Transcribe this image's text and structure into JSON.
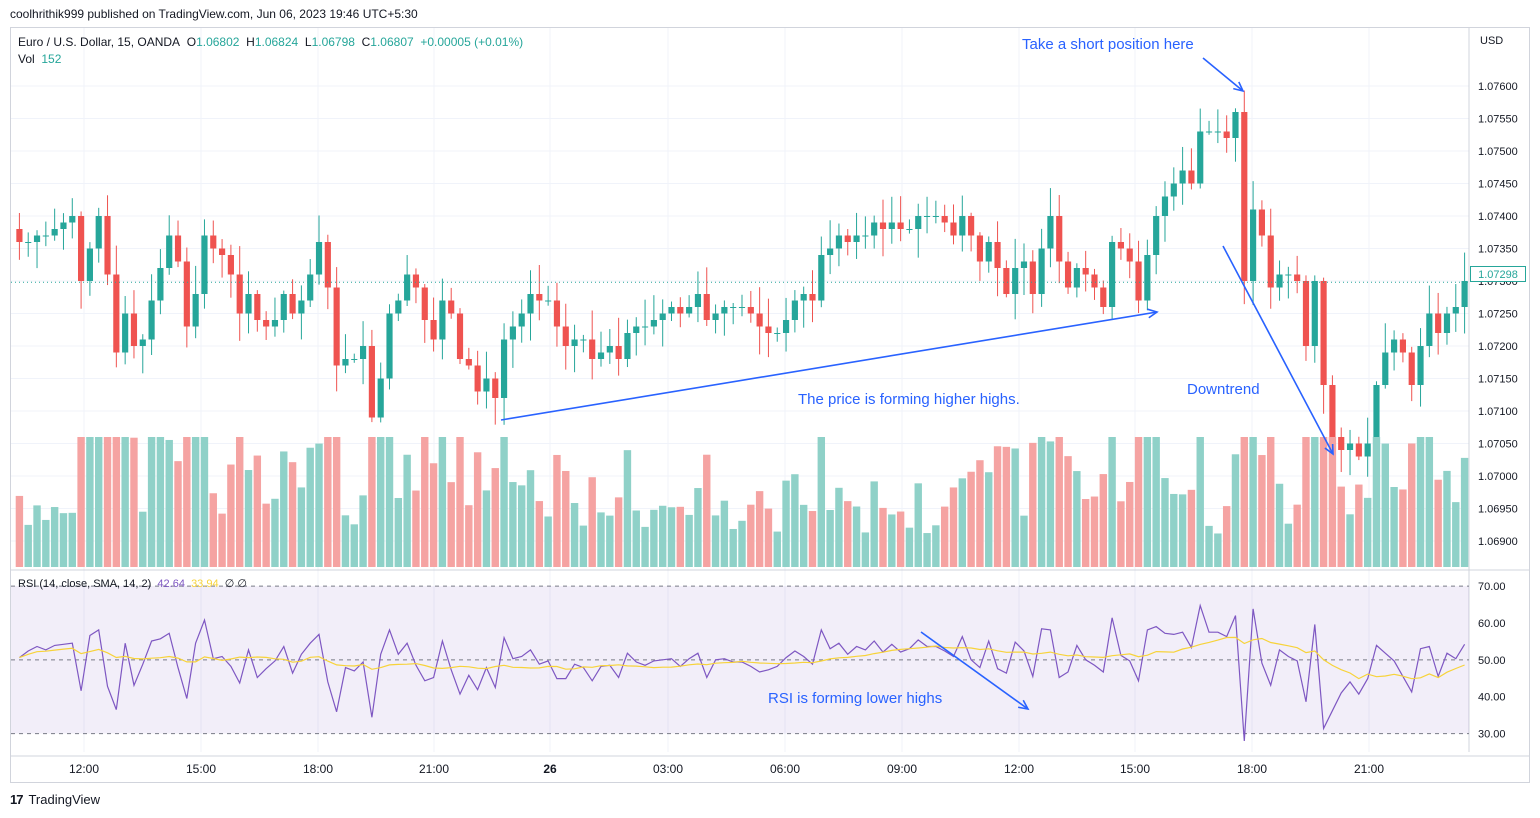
{
  "publish_line": "coolhrithik999 published on TradingView.com, Jun 06, 2023 19:46 UTC+5:30",
  "legend": {
    "symbol": "Euro / U.S. Dollar, 15, OANDA",
    "o_label": "O",
    "o": "1.06802",
    "h_label": "H",
    "h": "1.06824",
    "l_label": "L",
    "l": "1.06798",
    "c_label": "C",
    "c": "1.06807",
    "change": "+0.00005 (+0.01%)",
    "vol_label": "Vol",
    "vol": "152"
  },
  "rsi_legend": {
    "label": "RSI (14, close, SMA, 14, 2)",
    "rsi_value": "42.64",
    "sma_value": "33.94",
    "extra": "∅ ∅"
  },
  "annotations": {
    "short": "Take a short position here",
    "higher_highs": "The price is forming higher highs.",
    "downtrend": "Downtrend",
    "rsi_lower": "RSI is forming lower highs"
  },
  "footer": {
    "brand": "TradingView",
    "logo": "17"
  },
  "last_price": "1.07298",
  "colors": {
    "up": "#26a69a",
    "down": "#ef5350",
    "vol_up": "#8fd1c8",
    "vol_down": "#f5a3a2",
    "rsi": "#7e57c2",
    "rsi_sma": "#f7d33a",
    "annotation": "#2962ff"
  },
  "chart_data": {
    "type": "candlestick",
    "currency": "USD",
    "price_range": [
      1.0686,
      1.0764
    ],
    "price_ticks": [
      "1.07600",
      "1.07550",
      "1.07500",
      "1.07450",
      "1.07400",
      "1.07350",
      "1.07300",
      "1.07250",
      "1.07200",
      "1.07150",
      "1.07100",
      "1.07050",
      "1.07000",
      "1.06950",
      "1.06900"
    ],
    "time_labels": [
      "12:00",
      "15:00",
      "18:00",
      "21:00",
      "26",
      "03:00",
      "06:00",
      "09:00",
      "12:00",
      "15:00",
      "18:00",
      "21:00"
    ],
    "close": [
      1.0736,
      1.0736,
      1.0737,
      1.0737,
      1.0738,
      1.0739,
      1.074,
      1.073,
      1.0735,
      1.074,
      1.0731,
      1.0719,
      1.0725,
      1.072,
      1.0721,
      1.0727,
      1.0732,
      1.0737,
      1.0733,
      1.0723,
      1.0728,
      1.0737,
      1.0735,
      1.0734,
      1.0731,
      1.0725,
      1.0728,
      1.0724,
      1.0723,
      1.0724,
      1.0728,
      1.0725,
      1.0727,
      1.0731,
      1.0736,
      1.0729,
      1.0717,
      1.0718,
      1.0718,
      1.072,
      1.0709,
      1.0715,
      1.0725,
      1.0727,
      1.0731,
      1.0729,
      1.0724,
      1.0721,
      1.0727,
      1.0725,
      1.0718,
      1.0717,
      1.0713,
      1.0715,
      1.0712,
      1.0721,
      1.0723,
      1.0725,
      1.0728,
      1.0727,
      1.0727,
      1.0723,
      1.072,
      1.0721,
      1.0721,
      1.0718,
      1.0719,
      1.072,
      1.0718,
      1.0722,
      1.0723,
      1.0723,
      1.0724,
      1.0725,
      1.0726,
      1.0725,
      1.0726,
      1.0728,
      1.0724,
      1.0725,
      1.0726,
      1.0726,
      1.0726,
      1.0725,
      1.0723,
      1.0722,
      1.0722,
      1.0724,
      1.0727,
      1.0728,
      1.0727,
      1.0734,
      1.0735,
      1.0737,
      1.0736,
      1.0737,
      1.0737,
      1.0739,
      1.0738,
      1.0739,
      1.0738,
      1.0738,
      1.074,
      1.074,
      1.074,
      1.0739,
      1.0737,
      1.074,
      1.0737,
      1.0733,
      1.0736,
      1.0732,
      1.0728,
      1.0732,
      1.0733,
      1.0728,
      1.0735,
      1.074,
      1.0733,
      1.0729,
      1.0732,
      1.0731,
      1.0729,
      1.0726,
      1.0736,
      1.0735,
      1.0733,
      1.0727,
      1.0734,
      1.074,
      1.0743,
      1.0745,
      1.0747,
      1.0745,
      1.0753,
      1.0753,
      1.0753,
      1.0752,
      1.0756,
      1.073,
      1.0741,
      1.0737,
      1.0729,
      1.0731,
      1.0731,
      1.073,
      1.072,
      1.073,
      1.0714,
      1.0706,
      1.0704,
      1.0705,
      1.0703,
      1.0705,
      1.0714,
      1.0719,
      1.0721,
      1.0719,
      1.0714,
      1.072,
      1.0725,
      1.0722,
      1.0725,
      1.0726,
      1.073
    ],
    "volume_scale": [
      0,
      1
    ],
    "rsi_range": [
      25,
      73
    ],
    "rsi_ticks": [
      70,
      60,
      50,
      40,
      30
    ],
    "rsi_bands": {
      "upper": 70,
      "middle": 50,
      "lower": 30
    }
  }
}
